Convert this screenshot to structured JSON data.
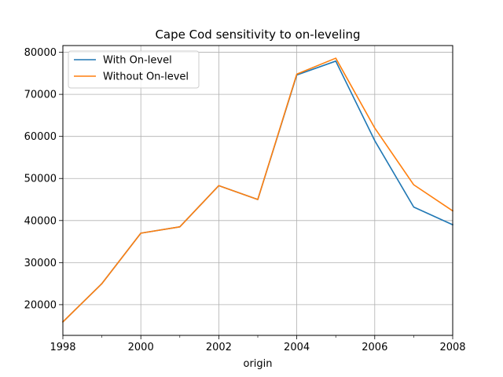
{
  "chart_data": {
    "type": "line",
    "title": "Cape Cod sensitivity to on-leveling",
    "xlabel": "origin",
    "ylabel": "",
    "xlim": [
      1998,
      2008
    ],
    "ylim": [
      12700,
      81600
    ],
    "x": [
      1998,
      1999,
      2000,
      2001,
      2002,
      2003,
      2004,
      2005,
      2006,
      2007,
      2008
    ],
    "xticks": [
      "1998",
      "2000",
      "2002",
      "2004",
      "2006",
      "2008"
    ],
    "xtick_values": [
      1998,
      2000,
      2002,
      2004,
      2006,
      2008
    ],
    "x_minor_ticks": [
      1999,
      2001,
      2003,
      2005,
      2007
    ],
    "yticks": [
      "20000",
      "30000",
      "40000",
      "50000",
      "60000",
      "70000",
      "80000"
    ],
    "ytick_values": [
      20000,
      30000,
      40000,
      50000,
      60000,
      70000,
      80000
    ],
    "grid": true,
    "legend_position": "upper-left",
    "series": [
      {
        "name": "With On-level",
        "color": "#1f77b4",
        "values": [
          15900,
          25000,
          37000,
          38500,
          48300,
          45000,
          74600,
          77900,
          59000,
          43200,
          39000
        ]
      },
      {
        "name": "Without On-level",
        "color": "#ff7f0e",
        "values": [
          15900,
          25000,
          37000,
          38500,
          48300,
          45000,
          74800,
          78600,
          62000,
          48500,
          42300
        ]
      }
    ]
  }
}
